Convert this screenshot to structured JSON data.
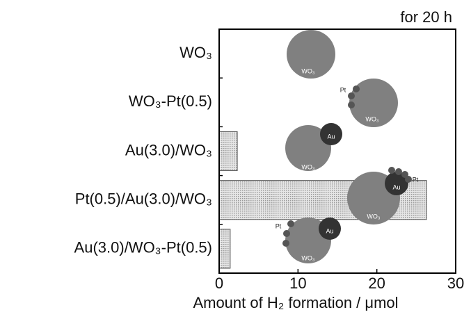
{
  "chart_data": {
    "type": "barh",
    "annotation": "for 20 h",
    "x_label": "Amount of H₂ formation / μmol",
    "categories": [
      "WO₃",
      "WO₃-Pt(0.5)",
      "Au(3.0)/WO₃",
      "Pt(0.5)/Au(3.0)/WO₃",
      "Au(3.0)/WO₃-Pt(0.5)"
    ],
    "values": [
      0,
      0,
      2.3,
      26.3,
      1.4
    ],
    "color": "#c8c8c8",
    "xlim": [
      0,
      30
    ],
    "xticks": [
      0,
      10,
      20,
      30
    ],
    "illustration_labels": [
      "WO₃",
      "Pt",
      "WO₃",
      "Au",
      "WO₃",
      "Pt",
      "Au",
      "WO₃",
      "Pt",
      "Au",
      "WO₃"
    ]
  }
}
